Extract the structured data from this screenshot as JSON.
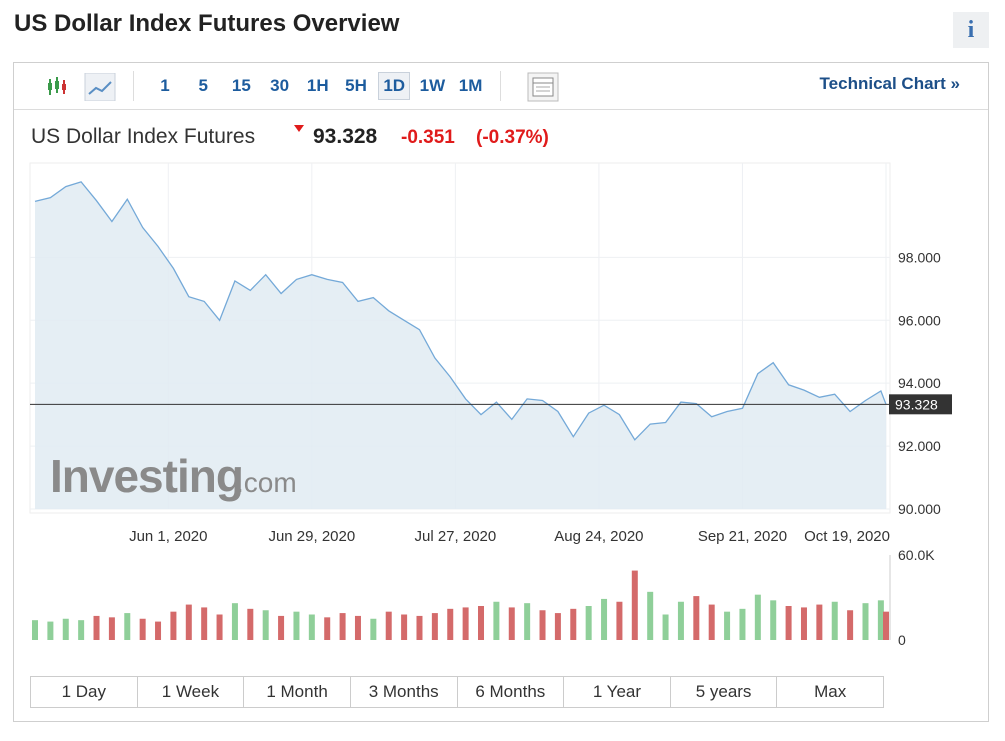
{
  "header": {
    "title": "US Dollar Index Futures Overview",
    "info": "i"
  },
  "toolbar": {
    "intervals": [
      "1",
      "5",
      "15",
      "30",
      "1H",
      "5H",
      "1D",
      "1W",
      "1M"
    ],
    "active": "1D",
    "link": "Technical Chart »"
  },
  "quote": {
    "name": "US Dollar Index Futures",
    "price": "93.328",
    "change": "-0.351",
    "change_pct": "(-0.37%)"
  },
  "watermark": {
    "brand": "Investing",
    "suffix": ".com"
  },
  "chart_data": {
    "type": "line",
    "color": "#74a9d8",
    "area_color": "#e1ebf2",
    "x": [
      "2020-05-06",
      "2020-05-09",
      "2020-05-12",
      "2020-05-15",
      "2020-05-18",
      "2020-05-21",
      "2020-05-24",
      "2020-05-27",
      "2020-05-30",
      "2020-06-02",
      "2020-06-05",
      "2020-06-08",
      "2020-06-11",
      "2020-06-14",
      "2020-06-17",
      "2020-06-20",
      "2020-06-23",
      "2020-06-26",
      "2020-06-29",
      "2020-07-02",
      "2020-07-05",
      "2020-07-08",
      "2020-07-11",
      "2020-07-14",
      "2020-07-17",
      "2020-07-20",
      "2020-07-23",
      "2020-07-26",
      "2020-07-29",
      "2020-08-01",
      "2020-08-04",
      "2020-08-07",
      "2020-08-10",
      "2020-08-13",
      "2020-08-16",
      "2020-08-19",
      "2020-08-22",
      "2020-08-25",
      "2020-08-28",
      "2020-08-31",
      "2020-09-03",
      "2020-09-06",
      "2020-09-09",
      "2020-09-12",
      "2020-09-15",
      "2020-09-18",
      "2020-09-21",
      "2020-09-24",
      "2020-09-27",
      "2020-09-30",
      "2020-10-03",
      "2020-10-06",
      "2020-10-09",
      "2020-10-12",
      "2020-10-15",
      "2020-10-18",
      "2020-10-19"
    ],
    "values": [
      99.78,
      99.9,
      100.25,
      100.4,
      99.8,
      99.14,
      99.85,
      98.95,
      98.35,
      97.65,
      96.75,
      96.6,
      96.0,
      97.25,
      96.95,
      97.45,
      96.85,
      97.3,
      97.45,
      97.3,
      97.2,
      96.6,
      96.72,
      96.3,
      96.0,
      95.7,
      94.8,
      94.2,
      93.5,
      93.0,
      93.4,
      92.85,
      93.5,
      93.45,
      93.1,
      92.3,
      93.05,
      93.3,
      93.0,
      92.2,
      92.7,
      92.75,
      93.4,
      93.35,
      92.93,
      93.1,
      93.2,
      94.3,
      94.65,
      93.95,
      93.78,
      93.55,
      93.65,
      93.1,
      93.45,
      93.75,
      93.328
    ],
    "last_value": 93.328,
    "xlim": [
      "2020-05-06",
      "2020-10-19"
    ],
    "xticks": [
      {
        "value": "2020-06-01",
        "label": "Jun 1, 2020"
      },
      {
        "value": "2020-06-29",
        "label": "Jun 29, 2020"
      },
      {
        "value": "2020-07-27",
        "label": "Jul 27, 2020"
      },
      {
        "value": "2020-08-24",
        "label": "Aug 24, 2020"
      },
      {
        "value": "2020-09-21",
        "label": "Sep 21, 2020"
      },
      {
        "value": "2020-10-19",
        "label": "Oct 19, 2020"
      }
    ],
    "ylim": [
      90,
      101
    ],
    "yticks": [
      {
        "value": 90,
        "label": "90.000"
      },
      {
        "value": 92,
        "label": "92.000"
      },
      {
        "value": 94,
        "label": "94.000"
      },
      {
        "value": 96,
        "label": "96.000"
      },
      {
        "value": 98,
        "label": "98.000"
      }
    ],
    "grid": true,
    "volume": {
      "up_color": "#8fcf99",
      "down_color": "#d46a6a",
      "ylim": [
        0,
        60000
      ],
      "yticks": [
        0,
        {
          "value": 60000,
          "label": "60.0K"
        }
      ],
      "values": [
        14000,
        13000,
        15000,
        14000,
        17000,
        16000,
        19000,
        15000,
        13000,
        20000,
        25000,
        23000,
        18000,
        26000,
        22000,
        21000,
        17000,
        20000,
        18000,
        16000,
        19000,
        17000,
        15000,
        20000,
        18000,
        17000,
        19000,
        22000,
        23000,
        24000,
        27000,
        23000,
        26000,
        21000,
        19000,
        22000,
        24000,
        29000,
        27000,
        49000,
        34000,
        18000,
        27000,
        31000,
        25000,
        20000,
        22000,
        32000,
        28000,
        24000,
        23000,
        25000,
        27000,
        21000,
        26000,
        28000,
        20000
      ]
    }
  },
  "ranges": [
    "1 Day",
    "1 Week",
    "1 Month",
    "3 Months",
    "6 Months",
    "1 Year",
    "5 years",
    "Max"
  ]
}
